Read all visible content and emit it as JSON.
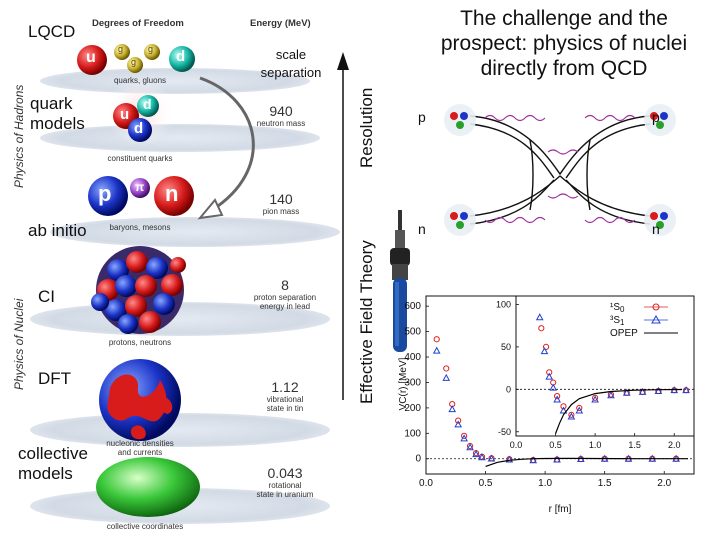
{
  "header": {
    "lqcd": "LQCD",
    "degrees_of_freedom": "Degrees of Freedom",
    "energy_unit": "Energy (MeV)"
  },
  "sides": {
    "hadrons": "Physics of Hadrons",
    "nuclei": "Physics of Nuclei"
  },
  "left_labels": {
    "quark_models": "quark\nmodels",
    "ab_initio": "ab initio",
    "ci": "CI",
    "dft": "DFT",
    "collective_models": "collective\nmodels"
  },
  "captions": {
    "quarks_gluons": "quarks, gluons",
    "constituent_quarks": "constituent quarks",
    "baryons_mesons": "baryons, mesons",
    "protons_neutrons": "protons, neutrons",
    "nucleonic_densities": "nucleonic densities\nand currents",
    "collective_coordinates": "collective coordinates"
  },
  "energies": [
    {
      "value": "940",
      "label": "neutron mass"
    },
    {
      "value": "140",
      "label": "pion mass"
    },
    {
      "value": "8",
      "label": "proton separation\nenergy in lead"
    },
    {
      "value": "1.12",
      "label": "vibrational\nstate in tin"
    },
    {
      "value": "0.043",
      "label": "rotational\nstate in uranium"
    }
  ],
  "particles": {
    "u": "u",
    "d": "d",
    "g": "g",
    "p": "p",
    "n": "n",
    "pi": "π"
  },
  "scale_separation": "scale\nseparation",
  "axes": {
    "resolution": "Resolution",
    "eft": "Effective Field Theory"
  },
  "title": "The challenge and the prospect: physics of nuclei directly from QCD",
  "feynman": {
    "p_in": "p",
    "p_out": "p",
    "n_in": "n",
    "n_out": "n"
  },
  "chart_data": {
    "type": "scatter",
    "xlabel": "r [fm]",
    "ylabel": "VC(r) [MeV]",
    "xlim": [
      0,
      2.25
    ],
    "ylim": [
      -60,
      640
    ],
    "xticks": [
      "0.0",
      "0.5",
      "1.0",
      "1.5",
      "2.0"
    ],
    "yticks": [
      "0",
      "100",
      "200",
      "300",
      "400",
      "500",
      "600"
    ],
    "series": [
      {
        "name": "1S0",
        "marker": "circle",
        "color": "#e02020",
        "x": [
          0.09,
          0.17,
          0.22,
          0.27,
          0.32,
          0.37,
          0.42,
          0.47,
          0.55,
          0.7,
          0.9,
          1.1,
          1.3,
          1.5,
          1.7,
          1.9,
          2.1
        ],
        "y": [
          470,
          355,
          215,
          150,
          90,
          50,
          22,
          8,
          2,
          -2,
          -5,
          -3,
          -1,
          0,
          0,
          0,
          0
        ]
      },
      {
        "name": "3S1",
        "marker": "triangle",
        "color": "#2040d0",
        "x": [
          0.09,
          0.17,
          0.22,
          0.27,
          0.32,
          0.37,
          0.42,
          0.47,
          0.55,
          0.7,
          0.9,
          1.1,
          1.3,
          1.5,
          1.7,
          1.9,
          2.1
        ],
        "y": [
          425,
          318,
          195,
          135,
          80,
          45,
          18,
          6,
          1,
          -3,
          -6,
          -3,
          -1,
          0,
          0,
          0,
          0
        ]
      },
      {
        "name": "OPEP",
        "marker": "line",
        "color": "#000000",
        "x": [
          0.5,
          0.6,
          0.7,
          0.8,
          0.9,
          1.0,
          1.2,
          1.4,
          1.6,
          1.8,
          2.0,
          2.2
        ],
        "y": [
          -30,
          -14,
          -6,
          -2,
          0,
          1,
          1.5,
          1,
          0.5,
          0.3,
          0.2,
          0.1
        ]
      }
    ],
    "inset": {
      "xlim": [
        0,
        2.25
      ],
      "ylim": [
        -55,
        110
      ],
      "xticks": [
        "0.0",
        "0.5",
        "1.0",
        "1.5",
        "2.0"
      ],
      "yticks": [
        "100",
        "50",
        "0",
        "-50"
      ],
      "legend": [
        "1S0",
        "3S1",
        "OPEP"
      ],
      "series": [
        {
          "name": "1S0",
          "marker": "circle",
          "color": "#e02020",
          "x": [
            0.32,
            0.38,
            0.42,
            0.47,
            0.52,
            0.6,
            0.7,
            0.8,
            1.0,
            1.2,
            1.4,
            1.6,
            1.8,
            2.0,
            2.15
          ],
          "y": [
            72,
            50,
            20,
            8,
            -8,
            -20,
            -30,
            -22,
            -10,
            -6,
            -4,
            -3,
            -2,
            -1,
            -1
          ]
        },
        {
          "name": "3S1",
          "marker": "triangle",
          "color": "#2040d0",
          "x": [
            0.3,
            0.36,
            0.42,
            0.47,
            0.52,
            0.6,
            0.7,
            0.8,
            1.0,
            1.2,
            1.4,
            1.6,
            1.8,
            2.0,
            2.15
          ],
          "y": [
            85,
            45,
            15,
            2,
            -12,
            -25,
            -32,
            -25,
            -12,
            -7,
            -4,
            -3,
            -2,
            -1,
            -1
          ]
        },
        {
          "name": "OPEP",
          "marker": "line",
          "color": "#000000",
          "x": [
            0.5,
            0.55,
            0.6,
            0.7,
            0.8,
            1.0,
            1.2,
            1.5,
            1.8,
            2.1
          ],
          "y": [
            -52,
            -40,
            -30,
            -18,
            -11,
            -5,
            -2.5,
            -1,
            -0.4,
            -0.2
          ]
        }
      ]
    }
  }
}
